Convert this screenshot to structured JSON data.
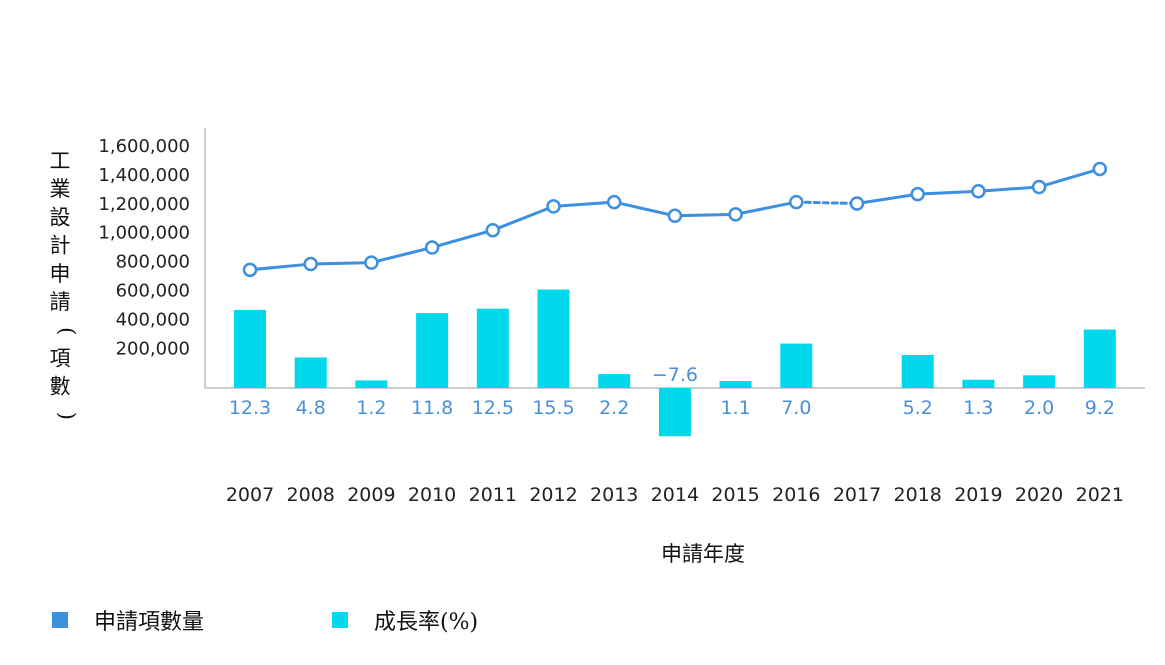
{
  "chart_data": {
    "type": "bar+line",
    "ylabel": "工業設計申請(項數)",
    "xlabel": "申請年度",
    "y_ticks": [
      "1,600,000",
      "1,400,000",
      "1,200,000",
      "1,000,000",
      "800,000",
      "600,000",
      "400,000",
      "200,000"
    ],
    "ylim": [
      0,
      1600000
    ],
    "categories": [
      "2007",
      "2008",
      "2009",
      "2010",
      "2011",
      "2012",
      "2013",
      "2014",
      "2015",
      "2016",
      "2017",
      "2018",
      "2019",
      "2020",
      "2021"
    ],
    "series": [
      {
        "name": "申請項數量",
        "kind": "line",
        "color": "#3d8fe0",
        "values": [
          820000,
          860000,
          870000,
          975000,
          1095000,
          1260000,
          1290000,
          1195000,
          1205000,
          1290000,
          1280000,
          1345000,
          1365000,
          1395000,
          1520000
        ],
        "dashed_segment": [
          "2016",
          "2017"
        ]
      },
      {
        "name": "成長率(%)",
        "kind": "bar",
        "color": "#00d9ec",
        "values": [
          12.3,
          4.8,
          1.2,
          11.8,
          12.5,
          15.5,
          2.2,
          -7.6,
          1.1,
          7.0,
          null,
          5.2,
          1.3,
          2.0,
          9.2
        ],
        "labels": [
          "12.3",
          "4.8",
          "1.2",
          "11.8",
          "12.5",
          "15.5",
          "2.2",
          "−7.6",
          "1.1",
          "7.0",
          "",
          "5.2",
          "1.3",
          "2.0",
          "9.2"
        ]
      }
    ],
    "legend": "bottom-left",
    "grid": false
  },
  "legend": {
    "line_label": "申請項數量",
    "bar_label": "成長率(%)",
    "line_color": "#3d8fe0",
    "bar_color": "#00d9ec"
  }
}
